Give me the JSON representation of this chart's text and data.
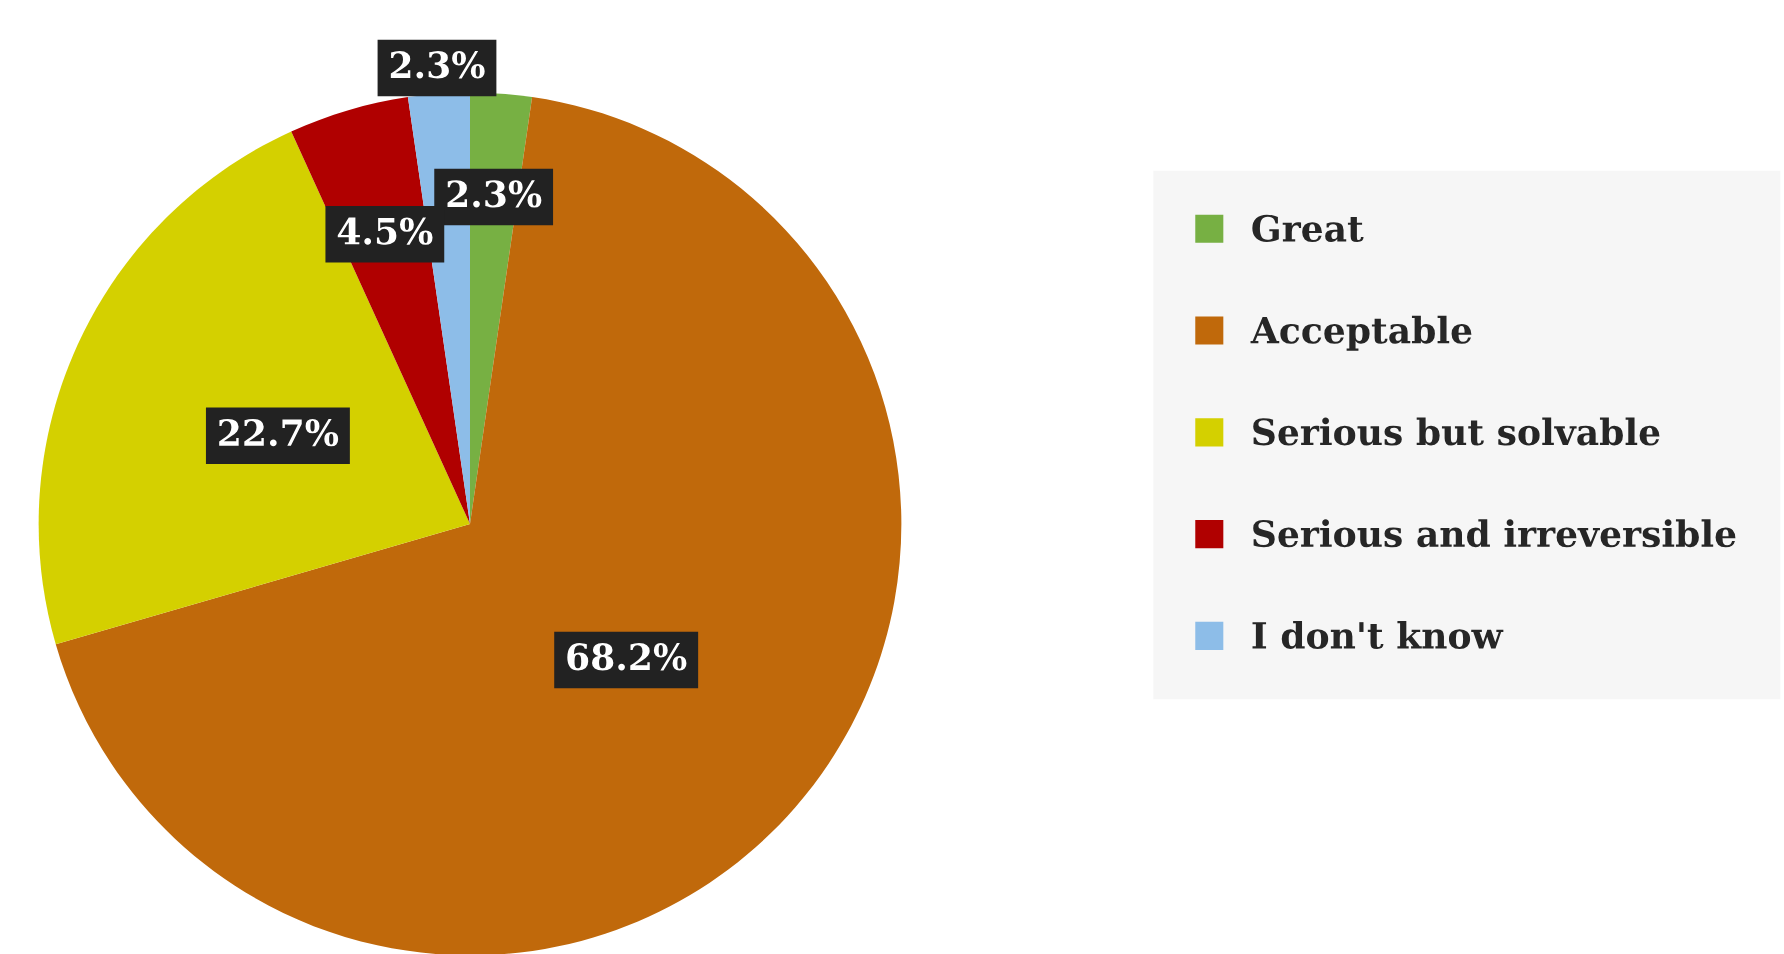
{
  "chart_data": {
    "type": "pie",
    "categories": [
      "Great",
      "Acceptable",
      "Serious but solvable",
      "Serious and irreversible",
      "I don't know"
    ],
    "values": [
      2.3,
      68.2,
      22.7,
      4.5,
      2.3
    ],
    "colors": [
      "#77b043",
      "#c0690b",
      "#d4d000",
      "#b00000",
      "#8dbde8"
    ],
    "value_labels": [
      "2.3%",
      "68.2%",
      "22.7%",
      "4.5%",
      "2.3%"
    ],
    "legend": "right"
  }
}
